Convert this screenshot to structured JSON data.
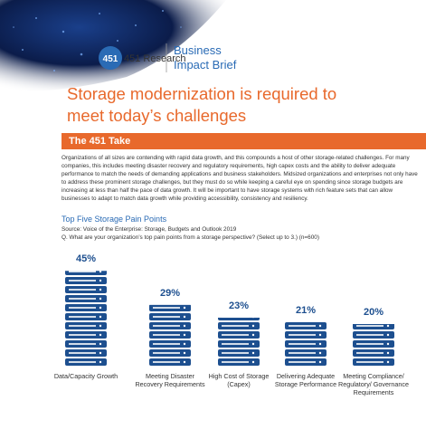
{
  "header": {
    "brand": "451 Research",
    "logo_number": "451",
    "brief_line1": "Business",
    "brief_line2": "Impact Brief"
  },
  "headline": "Storage modernization is required to meet today’s challenges",
  "section_title": "The 451 Take",
  "body": "Organizations of all sizes are contending with rapid data growth, and this compounds a host of other storage-related challenges. For many companies, this includes meeting disaster recovery and regulatory requirements, high capex costs and the ability to deliver adequate performance to match the needs of demanding applications and business stakeholders. Midsized organizations and enterprises not only have to address these prominent storage challenges, but they must do so while keeping a careful eye on spending since storage budgets are increasing at less than half the pace of data growth. It will be important to have storage systems with rich feature sets that can allow businesses to adapt to match data growth while providing accessibility, consistency and resiliency.",
  "chart_data": {
    "type": "bar",
    "title": "Top Five Storage Pain Points",
    "source": "Source: Voice of the Enterprise: Storage, Budgets and Outlook 2019",
    "question": "Q. What are your organization’s top pain points from a storage perspective? (Select up to 3.) (n=600)",
    "categories": [
      "Data/Capacity Growth",
      "Meeting Disaster Recovery Requirements",
      "High Cost of Storage (Capex)",
      "Delivering Adequate Storage Performance",
      "Meeting Compliance/ Regulatory/ Governance Requirements"
    ],
    "values": [
      45,
      29,
      23,
      21,
      20
    ],
    "value_labels": [
      "45%",
      "29%",
      "23%",
      "21%",
      "20%"
    ],
    "color": "#1d4f8f"
  }
}
